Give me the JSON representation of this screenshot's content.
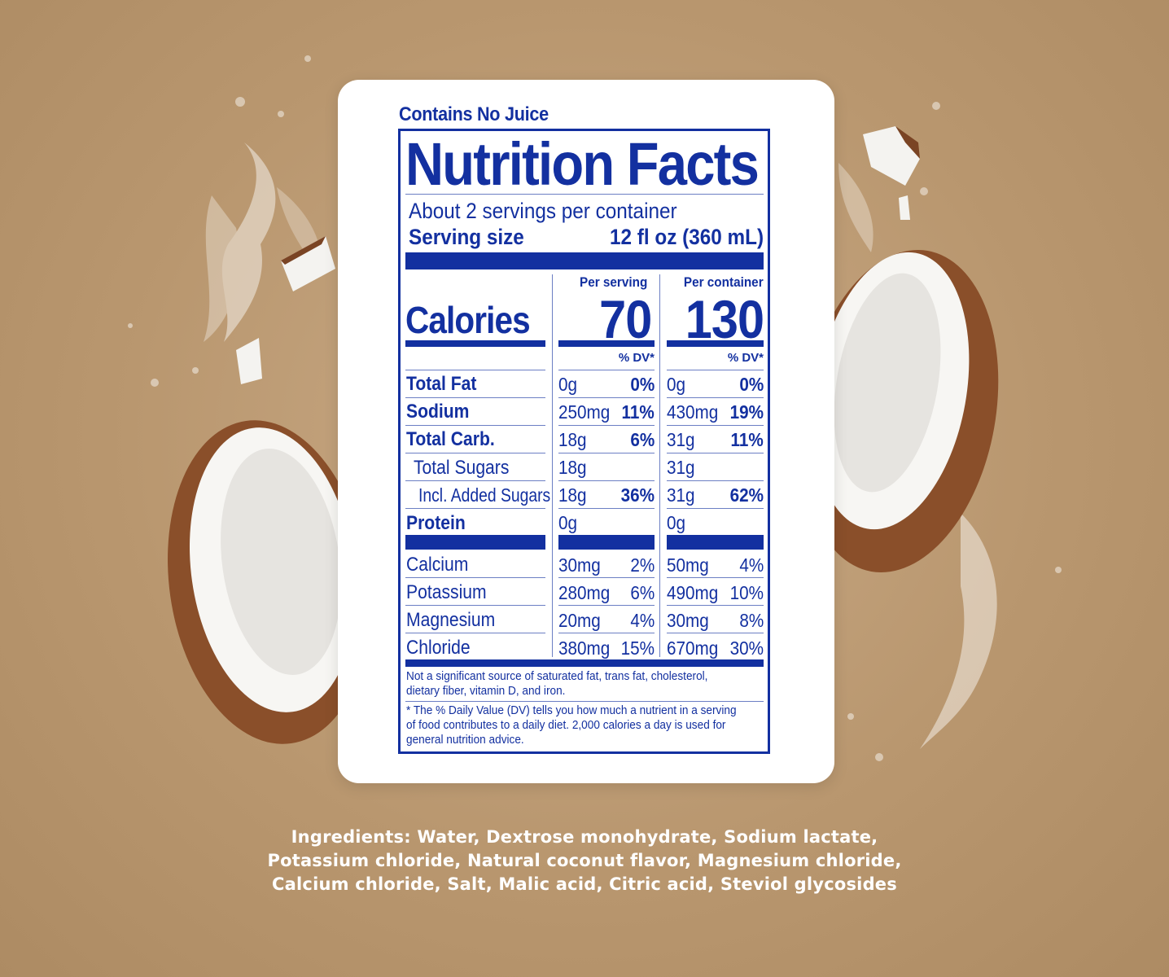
{
  "label": {
    "tagline": "Contains No Juice",
    "title": "Nutrition Facts",
    "servings_per_container": "About 2 servings per container",
    "serving_size_label": "Serving size",
    "serving_size_value": "12 fl oz (360 mL)",
    "col_serving": "Per serving",
    "col_container": "Per container",
    "calories_label": "Calories",
    "calories_serving": "70",
    "calories_container": "130",
    "dv_header": "% DV*",
    "nutrients": [
      {
        "name": "Total Fat",
        "s_amt": "0g",
        "s_dv": "0%",
        "c_amt": "0g",
        "c_dv": "0%"
      },
      {
        "name": "Sodium",
        "s_amt": "250mg",
        "s_dv": "11%",
        "c_amt": "430mg",
        "c_dv": "19%"
      },
      {
        "name": "Total Carb.",
        "s_amt": "18g",
        "s_dv": "6%",
        "c_amt": "31g",
        "c_dv": "11%"
      },
      {
        "name": "Total Sugars",
        "s_amt": "18g",
        "s_dv": "",
        "c_amt": "31g",
        "c_dv": ""
      },
      {
        "name": "Incl. Added Sugars",
        "s_amt": "18g",
        "s_dv": "36%",
        "c_amt": "31g",
        "c_dv": "62%"
      },
      {
        "name": "Protein",
        "s_amt": "0g",
        "s_dv": "",
        "c_amt": "0g",
        "c_dv": ""
      }
    ],
    "minerals": [
      {
        "name": "Calcium",
        "s_amt": "30mg",
        "s_dv": "2%",
        "c_amt": "50mg",
        "c_dv": "4%"
      },
      {
        "name": "Potassium",
        "s_amt": "280mg",
        "s_dv": "6%",
        "c_amt": "490mg",
        "c_dv": "10%"
      },
      {
        "name": "Magnesium",
        "s_amt": "20mg",
        "s_dv": "4%",
        "c_amt": "30mg",
        "c_dv": "8%"
      },
      {
        "name": "Chloride",
        "s_amt": "380mg",
        "s_dv": "15%",
        "c_amt": "670mg",
        "c_dv": "30%"
      }
    ],
    "footnote_1": "Not a significant source of saturated fat, trans fat, cholesterol, dietary fiber, vitamin D, and iron.",
    "footnote_2": "* The % Daily Value (DV) tells you how much a nutrient in a serving of food contributes to a daily diet. 2,000 calories a day is used for general nutrition advice."
  },
  "ingredients": {
    "label": "Ingredients:",
    "text": " Water, Dextrose monohydrate, Sodium lactate, Potassium chloride, Natural coconut flavor, Magnesium chloride, Calcium chloride, Salt, Malic acid, Citric acid, Steviol glycosides"
  },
  "colors": {
    "label_blue": "#1330a0",
    "background": "#b9976f"
  }
}
